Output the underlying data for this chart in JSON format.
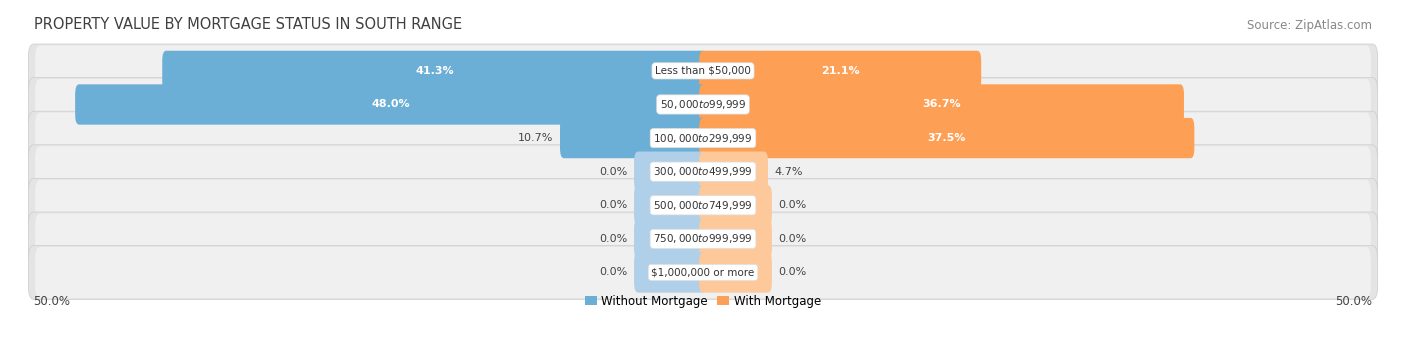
{
  "title": "PROPERTY VALUE BY MORTGAGE STATUS IN SOUTH RANGE",
  "source": "Source: ZipAtlas.com",
  "categories": [
    "Less than $50,000",
    "$50,000 to $99,999",
    "$100,000 to $299,999",
    "$300,000 to $499,999",
    "$500,000 to $749,999",
    "$750,000 to $999,999",
    "$1,000,000 or more"
  ],
  "without_mortgage": [
    41.3,
    48.0,
    10.7,
    0.0,
    0.0,
    0.0,
    0.0
  ],
  "with_mortgage": [
    21.1,
    36.7,
    37.5,
    4.7,
    0.0,
    0.0,
    0.0
  ],
  "color_without": "#6baed6",
  "color_with": "#fd9f54",
  "color_without_light": "#b0cfe8",
  "color_with_light": "#fec99a",
  "row_bg_color": "#e4e4e4",
  "row_inner_color": "#f0f0f0",
  "label_bg": "#ffffff",
  "axis_label_left": "50.0%",
  "axis_label_right": "50.0%",
  "legend_without": "Without Mortgage",
  "legend_with": "With Mortgage",
  "max_val": 50.0,
  "title_fontsize": 10.5,
  "source_fontsize": 8.5,
  "bar_label_fontsize": 8,
  "cat_label_fontsize": 7.5,
  "axis_fontsize": 8.5,
  "fig_bg": "#ffffff"
}
